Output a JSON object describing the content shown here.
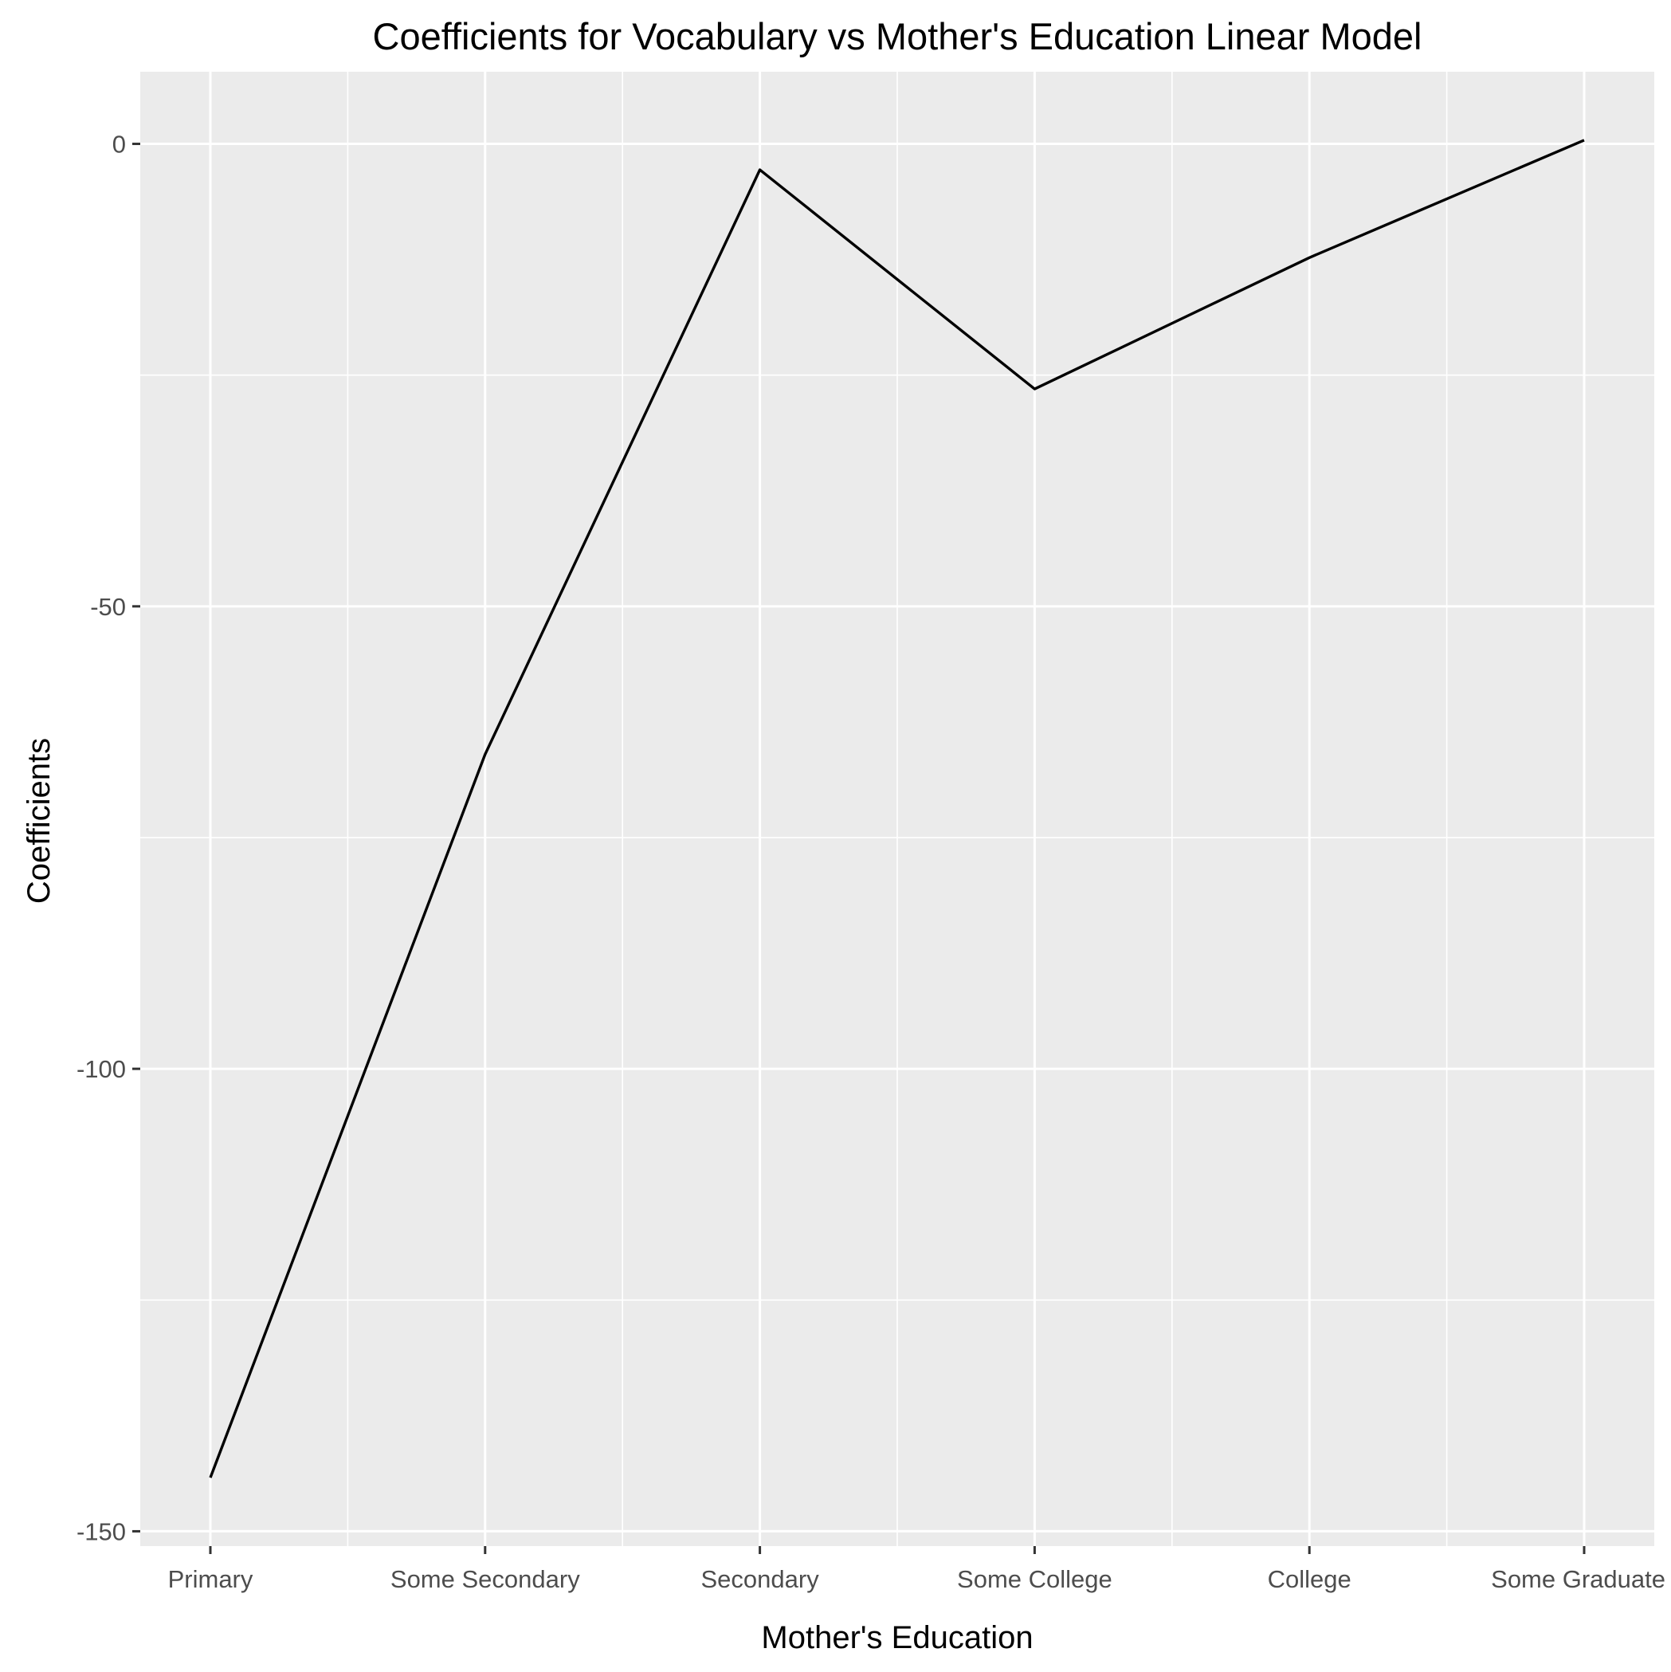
{
  "chart_data": {
    "type": "line",
    "title": "Coefficients for Vocabulary vs Mother's Education Linear Model",
    "xlabel": "Mother's Education",
    "ylabel": "Coefficients",
    "categories": [
      "Primary",
      "Some Secondary",
      "Secondary",
      "Some College",
      "College",
      "Some Graduate"
    ],
    "series": [
      {
        "values": [
          -144.2,
          -66.0,
          -2.8,
          -26.5,
          -12.3,
          0.4
        ]
      }
    ],
    "ylim": [
      -151.6,
      7.8
    ],
    "yticks": [
      0,
      -50,
      -100,
      -150
    ],
    "yticklabels": [
      "0",
      "-50",
      "-100",
      "-150"
    ],
    "grid": true,
    "legend": "none",
    "colors": {
      "panel": "#ebebeb",
      "line": "#000000",
      "grid": "#ffffff",
      "tick_text": "#4d4d4d"
    }
  }
}
